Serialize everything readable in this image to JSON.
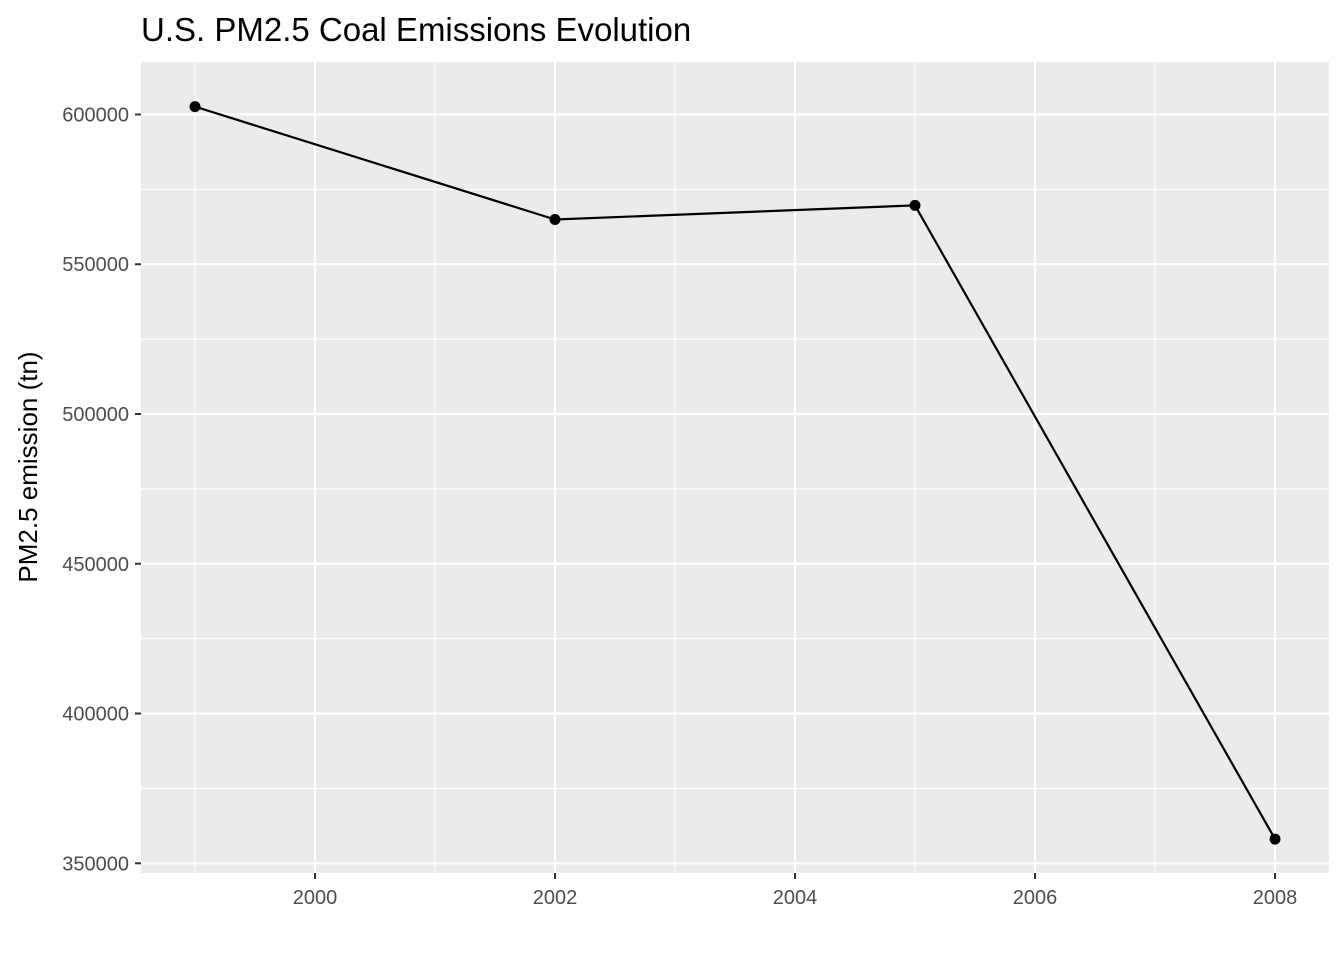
{
  "chart_data": {
    "type": "line",
    "title": "U.S. PM2.5 Coal Emissions Evolution",
    "xlabel": "",
    "ylabel": "PM2.5 emission (tn)",
    "x": [
      1999,
      2002,
      2005,
      2008
    ],
    "series": [
      {
        "values": [
          602624,
          564936,
          569655,
          358084
        ]
      }
    ],
    "xlim": [
      1998.55,
      2008.45
    ],
    "ylim": [
      346758,
      617524
    ],
    "x_ticks": [
      2000,
      2002,
      2004,
      2006,
      2008
    ],
    "x_tick_labels": [
      "2000",
      "2002",
      "2004",
      "2006",
      "2008"
    ],
    "y_ticks": [
      350000,
      400000,
      450000,
      500000,
      550000,
      600000
    ],
    "y_tick_labels": [
      "350000",
      "400000",
      "450000",
      "500000",
      "550000",
      "600000"
    ],
    "grid": true,
    "legend": "none",
    "colors": {
      "panel_background": "#ebebeb",
      "grid_line": "#ffffff",
      "series_line": "#000000",
      "tick_label": "#4d4d4d",
      "axis_tick": "#333333"
    }
  }
}
